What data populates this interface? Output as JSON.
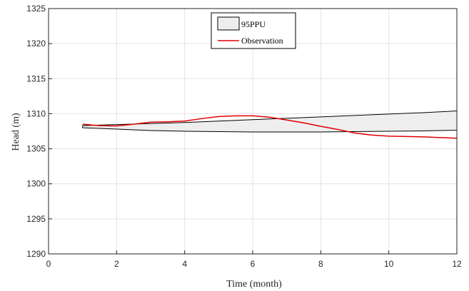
{
  "chart_data": {
    "type": "area",
    "xlabel": "Time (month)",
    "ylabel": "Head (m)",
    "xlim": [
      0,
      12
    ],
    "ylim": [
      1290,
      1325
    ],
    "xticks": [
      0,
      2,
      4,
      6,
      8,
      10,
      12
    ],
    "yticks": [
      1290,
      1295,
      1300,
      1305,
      1310,
      1315,
      1320,
      1325
    ],
    "grid": true,
    "legend_position": "top-center",
    "band": {
      "name": "95PPU",
      "fill": "#eeeeee",
      "stroke": "#000000",
      "x": [
        1,
        2,
        3,
        4,
        5,
        6,
        7,
        8,
        9,
        10,
        11,
        12
      ],
      "upper": [
        1308.3,
        1308.45,
        1308.6,
        1308.75,
        1308.95,
        1309.15,
        1309.35,
        1309.55,
        1309.75,
        1309.95,
        1310.15,
        1310.4
      ],
      "lower": [
        1308.0,
        1307.8,
        1307.6,
        1307.5,
        1307.45,
        1307.4,
        1307.4,
        1307.4,
        1307.45,
        1307.5,
        1307.55,
        1307.65
      ]
    },
    "series": [
      {
        "name": "Observation",
        "color": "#e00000",
        "x": [
          1,
          1.5,
          2,
          2.5,
          3,
          3.5,
          4,
          4.5,
          5,
          5.5,
          6,
          6.5,
          7,
          7.5,
          8,
          8.5,
          9,
          9.5,
          10,
          10.5,
          11,
          11.5,
          12
        ],
        "values": [
          1308.5,
          1308.3,
          1308.25,
          1308.5,
          1308.8,
          1308.85,
          1308.95,
          1309.3,
          1309.6,
          1309.7,
          1309.7,
          1309.5,
          1309.1,
          1308.7,
          1308.2,
          1307.75,
          1307.25,
          1306.95,
          1306.8,
          1306.75,
          1306.7,
          1306.6,
          1306.5
        ]
      }
    ]
  }
}
